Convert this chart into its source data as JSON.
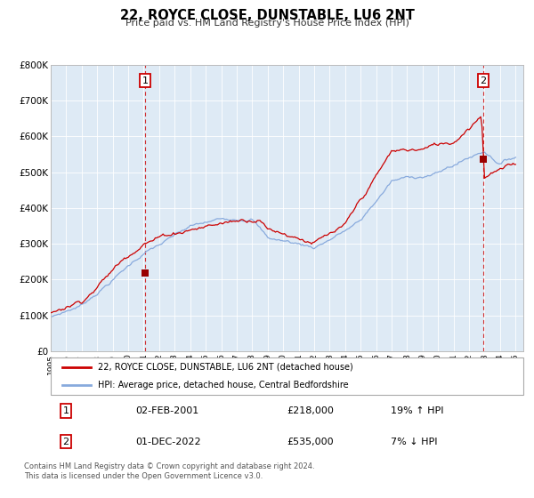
{
  "title": "22, ROYCE CLOSE, DUNSTABLE, LU6 2NT",
  "subtitle": "Price paid vs. HM Land Registry's House Price Index (HPI)",
  "ylim": [
    0,
    800000
  ],
  "xlim_start": 1995.0,
  "xlim_end": 2025.5,
  "yticks": [
    0,
    100000,
    200000,
    300000,
    400000,
    500000,
    600000,
    700000,
    800000
  ],
  "ytick_labels": [
    "£0",
    "£100K",
    "£200K",
    "£300K",
    "£400K",
    "£500K",
    "£600K",
    "£700K",
    "£800K"
  ],
  "xticks": [
    1995,
    1996,
    1997,
    1998,
    1999,
    2000,
    2001,
    2002,
    2003,
    2004,
    2005,
    2006,
    2007,
    2008,
    2009,
    2010,
    2011,
    2012,
    2013,
    2014,
    2015,
    2016,
    2017,
    2018,
    2019,
    2020,
    2021,
    2022,
    2023,
    2024,
    2025
  ],
  "line1_color": "#cc0000",
  "line2_color": "#88aadd",
  "marker_color": "#990000",
  "vline_color": "#cc0000",
  "plot_bg": "#deeaf5",
  "sale1_x": 2001.083,
  "sale1_y": 218000,
  "sale2_x": 2022.917,
  "sale2_y": 535000,
  "legend_label1": "22, ROYCE CLOSE, DUNSTABLE, LU6 2NT (detached house)",
  "legend_label2": "HPI: Average price, detached house, Central Bedfordshire",
  "info1_num": "1",
  "info1_date": "02-FEB-2001",
  "info1_price": "£218,000",
  "info1_hpi": "19% ↑ HPI",
  "info2_num": "2",
  "info2_date": "01-DEC-2022",
  "info2_price": "£535,000",
  "info2_hpi": "7% ↓ HPI",
  "footer1": "Contains HM Land Registry data © Crown copyright and database right 2024.",
  "footer2": "This data is licensed under the Open Government Licence v3.0."
}
